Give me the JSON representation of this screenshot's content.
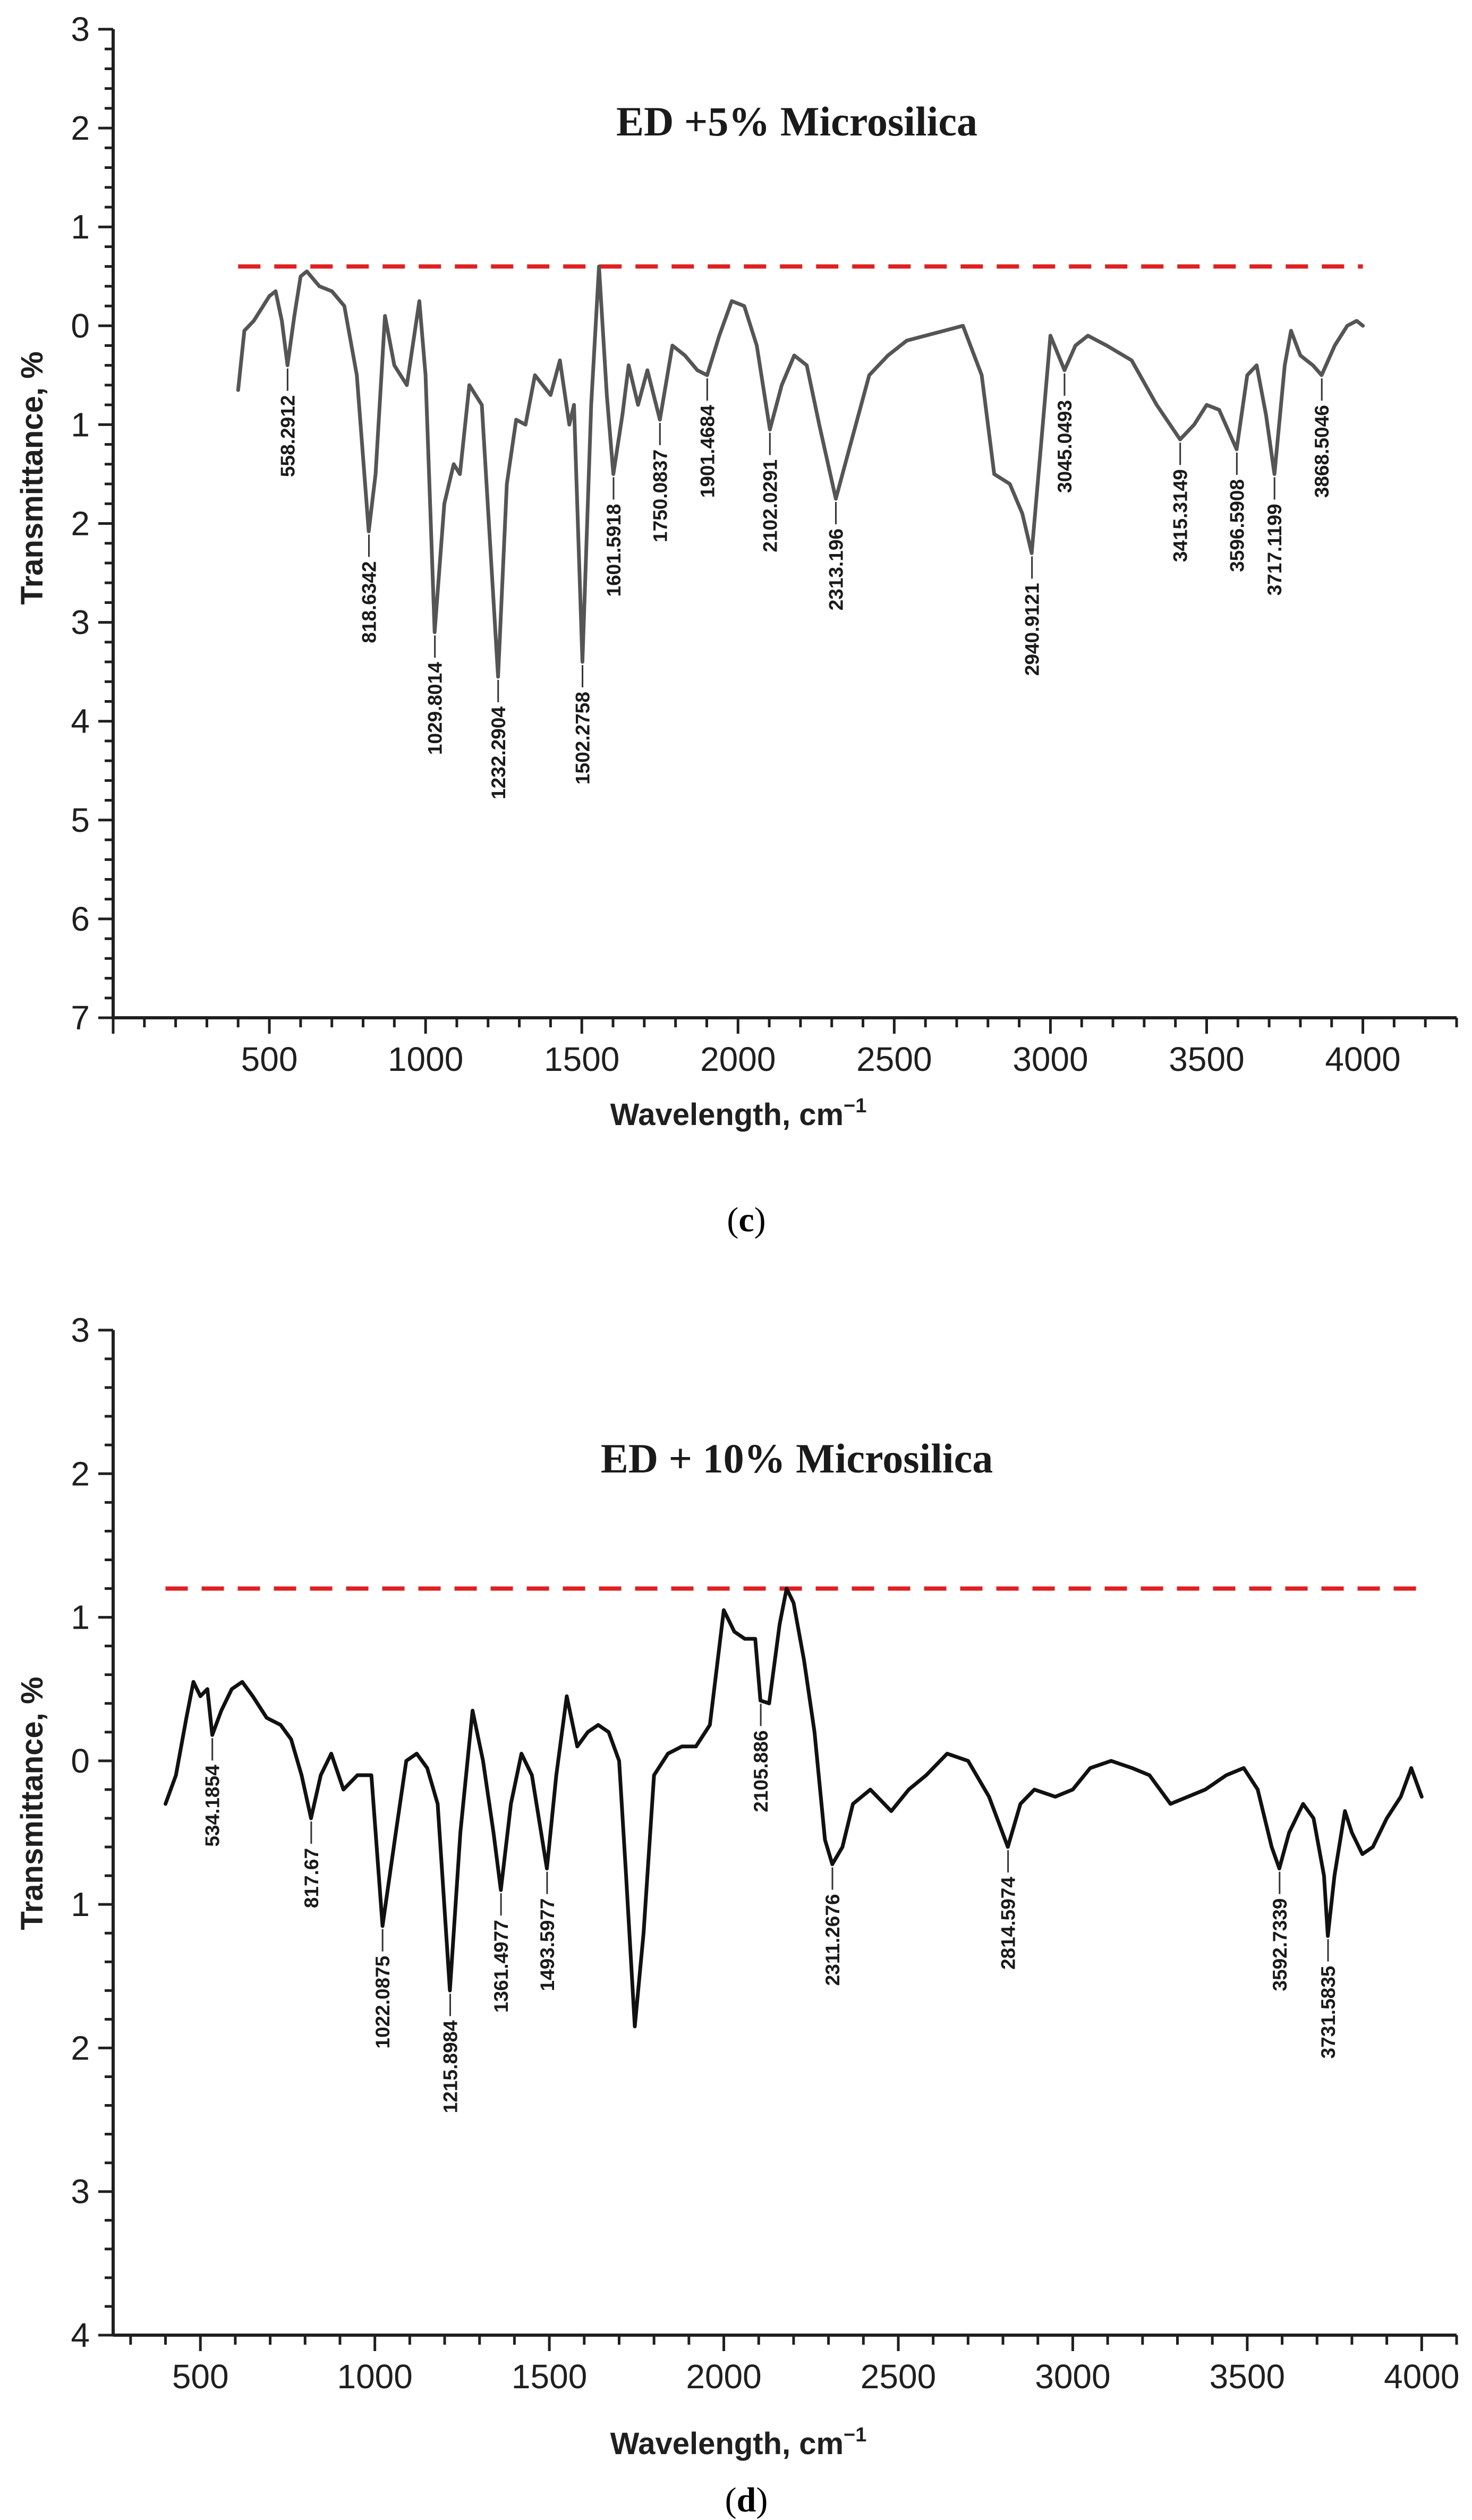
{
  "colors": {
    "series_c": "#555555",
    "series_d": "#111111",
    "reference": "#e02020",
    "axis": "#1f1f1f"
  },
  "chart_data": [
    {
      "panel": "c",
      "caption_open": "(",
      "caption_letter": "c",
      "caption_close": ")",
      "type": "line",
      "title": "ED +5% Microsilica",
      "xlabel": "Wavelength, cm",
      "xlabel_sup": "−1",
      "ylabel": "Transmittance, %",
      "xlim": [
        0,
        4300
      ],
      "ylim": [
        -3,
        7
      ],
      "y_inverted": true,
      "xticks": [
        500,
        1000,
        1500,
        2000,
        2500,
        3000,
        3500,
        4000
      ],
      "yticks": [
        -3,
        -2,
        -1,
        0,
        1,
        2,
        3,
        4,
        5,
        6,
        7
      ],
      "ytick_labels": [
        "3",
        "2",
        "1",
        "0",
        "1",
        "2",
        "3",
        "4",
        "5",
        "6",
        "7"
      ],
      "reference_line": {
        "y": -0.6,
        "x_start": 400,
        "x_end": 4000,
        "style": "dashed"
      },
      "series": [
        {
          "name": "ED +5% Microsilica",
          "points": [
            [
              400,
              0.65
            ],
            [
              420,
              0.05
            ],
            [
              450,
              -0.05
            ],
            [
              480,
              -0.2
            ],
            [
              500,
              -0.3
            ],
            [
              520,
              -0.35
            ],
            [
              540,
              -0.05
            ],
            [
              558,
              0.4
            ],
            [
              580,
              -0.1
            ],
            [
              600,
              -0.5
            ],
            [
              620,
              -0.55
            ],
            [
              660,
              -0.4
            ],
            [
              700,
              -0.35
            ],
            [
              740,
              -0.2
            ],
            [
              780,
              0.5
            ],
            [
              818,
              2.08
            ],
            [
              840,
              1.5
            ],
            [
              870,
              -0.1
            ],
            [
              900,
              0.4
            ],
            [
              940,
              0.6
            ],
            [
              980,
              -0.25
            ],
            [
              1000,
              0.5
            ],
            [
              1029,
              3.1
            ],
            [
              1060,
              1.8
            ],
            [
              1090,
              1.4
            ],
            [
              1110,
              1.5
            ],
            [
              1140,
              0.6
            ],
            [
              1180,
              0.8
            ],
            [
              1232,
              3.55
            ],
            [
              1260,
              1.6
            ],
            [
              1290,
              0.95
            ],
            [
              1320,
              1.0
            ],
            [
              1350,
              0.5
            ],
            [
              1400,
              0.7
            ],
            [
              1430,
              0.35
            ],
            [
              1460,
              1.0
            ],
            [
              1475,
              0.8
            ],
            [
              1502,
              3.4
            ],
            [
              1530,
              0.8
            ],
            [
              1555,
              -0.6
            ],
            [
              1580,
              0.7
            ],
            [
              1601,
              1.5
            ],
            [
              1630,
              0.9
            ],
            [
              1650,
              0.4
            ],
            [
              1680,
              0.8
            ],
            [
              1710,
              0.45
            ],
            [
              1750,
              0.95
            ],
            [
              1790,
              0.2
            ],
            [
              1830,
              0.3
            ],
            [
              1870,
              0.45
            ],
            [
              1901,
              0.5
            ],
            [
              1940,
              0.1
            ],
            [
              1980,
              -0.25
            ],
            [
              2020,
              -0.2
            ],
            [
              2060,
              0.2
            ],
            [
              2102,
              1.05
            ],
            [
              2140,
              0.6
            ],
            [
              2180,
              0.3
            ],
            [
              2220,
              0.4
            ],
            [
              2260,
              1.0
            ],
            [
              2313,
              1.75
            ],
            [
              2360,
              1.2
            ],
            [
              2420,
              0.5
            ],
            [
              2480,
              0.3
            ],
            [
              2540,
              0.15
            ],
            [
              2600,
              0.1
            ],
            [
              2660,
              0.05
            ],
            [
              2720,
              0.0
            ],
            [
              2780,
              0.5
            ],
            [
              2820,
              1.5
            ],
            [
              2870,
              1.6
            ],
            [
              2910,
              1.9
            ],
            [
              2940,
              2.3
            ],
            [
              2970,
              1.2
            ],
            [
              3000,
              0.1
            ],
            [
              3045,
              0.45
            ],
            [
              3080,
              0.2
            ],
            [
              3120,
              0.1
            ],
            [
              3180,
              0.2
            ],
            [
              3260,
              0.35
            ],
            [
              3340,
              0.8
            ],
            [
              3415,
              1.15
            ],
            [
              3460,
              1.0
            ],
            [
              3500,
              0.8
            ],
            [
              3540,
              0.85
            ],
            [
              3596,
              1.25
            ],
            [
              3630,
              0.5
            ],
            [
              3660,
              0.4
            ],
            [
              3690,
              0.9
            ],
            [
              3717,
              1.5
            ],
            [
              3750,
              0.4
            ],
            [
              3770,
              0.05
            ],
            [
              3800,
              0.3
            ],
            [
              3840,
              0.4
            ],
            [
              3868,
              0.5
            ],
            [
              3910,
              0.2
            ],
            [
              3950,
              0.0
            ],
            [
              3980,
              -0.05
            ],
            [
              4000,
              0.0
            ]
          ]
        }
      ],
      "annotations": [
        {
          "x": 558.2912,
          "y": 0.4,
          "label": "558.2912"
        },
        {
          "x": 818.6342,
          "y": 2.08,
          "label": "818.6342"
        },
        {
          "x": 1029.8014,
          "y": 3.1,
          "label": "1029.8014"
        },
        {
          "x": 1232.2904,
          "y": 3.55,
          "label": "1232.2904"
        },
        {
          "x": 1502.2758,
          "y": 3.4,
          "label": "1502.2758"
        },
        {
          "x": 1601.5918,
          "y": 1.5,
          "label": "1601.5918"
        },
        {
          "x": 1750.0837,
          "y": 0.95,
          "label": "1750.0837"
        },
        {
          "x": 1901.4684,
          "y": 0.5,
          "label": "1901.4684"
        },
        {
          "x": 2102.0291,
          "y": 1.05,
          "label": "2102.0291"
        },
        {
          "x": 2313.196,
          "y": 1.75,
          "label": "2313.196"
        },
        {
          "x": 2940.9121,
          "y": 2.3,
          "label": "2940.9121"
        },
        {
          "x": 3045.0493,
          "y": 0.45,
          "label": "3045.0493"
        },
        {
          "x": 3415.3149,
          "y": 1.15,
          "label": "3415.3149"
        },
        {
          "x": 3596.5908,
          "y": 1.25,
          "label": "3596.5908"
        },
        {
          "x": 3717.1199,
          "y": 1.5,
          "label": "3717.1199"
        },
        {
          "x": 3868.5046,
          "y": 0.5,
          "label": "3868.5046"
        }
      ]
    },
    {
      "panel": "d",
      "caption_open": "(",
      "caption_letter": "d",
      "caption_close": ")",
      "type": "line",
      "title": "ED + 10% Microsilica",
      "xlabel": "Wavelength, cm",
      "xlabel_sup": "−1",
      "ylabel": "Transmittance, %",
      "xlim": [
        250,
        4100
      ],
      "ylim": [
        -3,
        4
      ],
      "y_inverted": true,
      "xticks": [
        500,
        1000,
        1500,
        2000,
        2500,
        3000,
        3500,
        4000
      ],
      "yticks": [
        -3,
        -2,
        -1,
        0,
        1,
        2,
        3,
        4
      ],
      "ytick_labels": [
        "3",
        "2",
        "1",
        "0",
        "1",
        "2",
        "3",
        "4"
      ],
      "reference_line": {
        "y": -1.2,
        "x_start": 400,
        "x_end": 4000,
        "style": "dashed"
      },
      "series": [
        {
          "name": "ED + 10% Microsilica",
          "points": [
            [
              400,
              0.3
            ],
            [
              430,
              0.1
            ],
            [
              460,
              -0.3
            ],
            [
              480,
              -0.55
            ],
            [
              500,
              -0.45
            ],
            [
              520,
              -0.5
            ],
            [
              534,
              -0.18
            ],
            [
              560,
              -0.35
            ],
            [
              590,
              -0.5
            ],
            [
              620,
              -0.55
            ],
            [
              650,
              -0.45
            ],
            [
              690,
              -0.3
            ],
            [
              730,
              -0.25
            ],
            [
              760,
              -0.15
            ],
            [
              790,
              0.1
            ],
            [
              817,
              0.4
            ],
            [
              845,
              0.1
            ],
            [
              875,
              -0.05
            ],
            [
              910,
              0.2
            ],
            [
              950,
              0.1
            ],
            [
              990,
              0.1
            ],
            [
              1022,
              1.15
            ],
            [
              1060,
              0.5
            ],
            [
              1090,
              0.0
            ],
            [
              1120,
              -0.05
            ],
            [
              1150,
              0.05
            ],
            [
              1180,
              0.3
            ],
            [
              1215,
              1.6
            ],
            [
              1245,
              0.5
            ],
            [
              1280,
              -0.35
            ],
            [
              1310,
              0.0
            ],
            [
              1340,
              0.5
            ],
            [
              1361,
              0.9
            ],
            [
              1390,
              0.3
            ],
            [
              1420,
              -0.05
            ],
            [
              1450,
              0.1
            ],
            [
              1493,
              0.75
            ],
            [
              1520,
              0.1
            ],
            [
              1550,
              -0.45
            ],
            [
              1580,
              -0.1
            ],
            [
              1610,
              -0.2
            ],
            [
              1640,
              -0.25
            ],
            [
              1670,
              -0.2
            ],
            [
              1700,
              0.0
            ],
            [
              1720,
              0.8
            ],
            [
              1745,
              1.85
            ],
            [
              1770,
              1.2
            ],
            [
              1800,
              0.1
            ],
            [
              1840,
              -0.05
            ],
            [
              1880,
              -0.1
            ],
            [
              1920,
              -0.1
            ],
            [
              1960,
              -0.25
            ],
            [
              2000,
              -1.05
            ],
            [
              2030,
              -0.9
            ],
            [
              2060,
              -0.85
            ],
            [
              2090,
              -0.85
            ],
            [
              2105,
              -0.42
            ],
            [
              2130,
              -0.4
            ],
            [
              2160,
              -0.95
            ],
            [
              2180,
              -1.2
            ],
            [
              2200,
              -1.1
            ],
            [
              2230,
              -0.7
            ],
            [
              2260,
              -0.2
            ],
            [
              2290,
              0.55
            ],
            [
              2311,
              0.72
            ],
            [
              2340,
              0.6
            ],
            [
              2370,
              0.3
            ],
            [
              2420,
              0.2
            ],
            [
              2480,
              0.35
            ],
            [
              2530,
              0.2
            ],
            [
              2580,
              0.1
            ],
            [
              2640,
              -0.05
            ],
            [
              2700,
              0.0
            ],
            [
              2760,
              0.25
            ],
            [
              2814,
              0.6
            ],
            [
              2850,
              0.3
            ],
            [
              2890,
              0.2
            ],
            [
              2950,
              0.25
            ],
            [
              3000,
              0.2
            ],
            [
              3050,
              0.05
            ],
            [
              3110,
              0.0
            ],
            [
              3170,
              0.05
            ],
            [
              3220,
              0.1
            ],
            [
              3280,
              0.3
            ],
            [
              3330,
              0.25
            ],
            [
              3380,
              0.2
            ],
            [
              3440,
              0.1
            ],
            [
              3490,
              0.05
            ],
            [
              3530,
              0.2
            ],
            [
              3570,
              0.6
            ],
            [
              3592,
              0.75
            ],
            [
              3620,
              0.5
            ],
            [
              3660,
              0.3
            ],
            [
              3690,
              0.4
            ],
            [
              3720,
              0.8
            ],
            [
              3731,
              1.22
            ],
            [
              3750,
              0.8
            ],
            [
              3780,
              0.35
            ],
            [
              3800,
              0.5
            ],
            [
              3830,
              0.65
            ],
            [
              3860,
              0.6
            ],
            [
              3900,
              0.4
            ],
            [
              3940,
              0.25
            ],
            [
              3970,
              0.05
            ],
            [
              4000,
              0.25
            ]
          ]
        }
      ],
      "annotations": [
        {
          "x": 534.1854,
          "y": -0.18,
          "label": "534.1854"
        },
        {
          "x": 817.67,
          "y": 0.4,
          "label": "817.67"
        },
        {
          "x": 1022.0875,
          "y": 1.15,
          "label": "1022.0875"
        },
        {
          "x": 1215.8984,
          "y": 1.6,
          "label": "1215.8984"
        },
        {
          "x": 1361.4977,
          "y": 0.9,
          "label": "1361.4977"
        },
        {
          "x": 1493.5977,
          "y": 0.75,
          "label": "1493.5977"
        },
        {
          "x": 2105.886,
          "y": -0.42,
          "label": "2105.886"
        },
        {
          "x": 2311.2676,
          "y": 0.72,
          "label": "2311.2676"
        },
        {
          "x": 2814.5974,
          "y": 0.6,
          "label": "2814.5974"
        },
        {
          "x": 3592.7339,
          "y": 0.75,
          "label": "3592.7339"
        },
        {
          "x": 3731.5835,
          "y": 1.22,
          "label": "3731.5835"
        }
      ]
    }
  ]
}
